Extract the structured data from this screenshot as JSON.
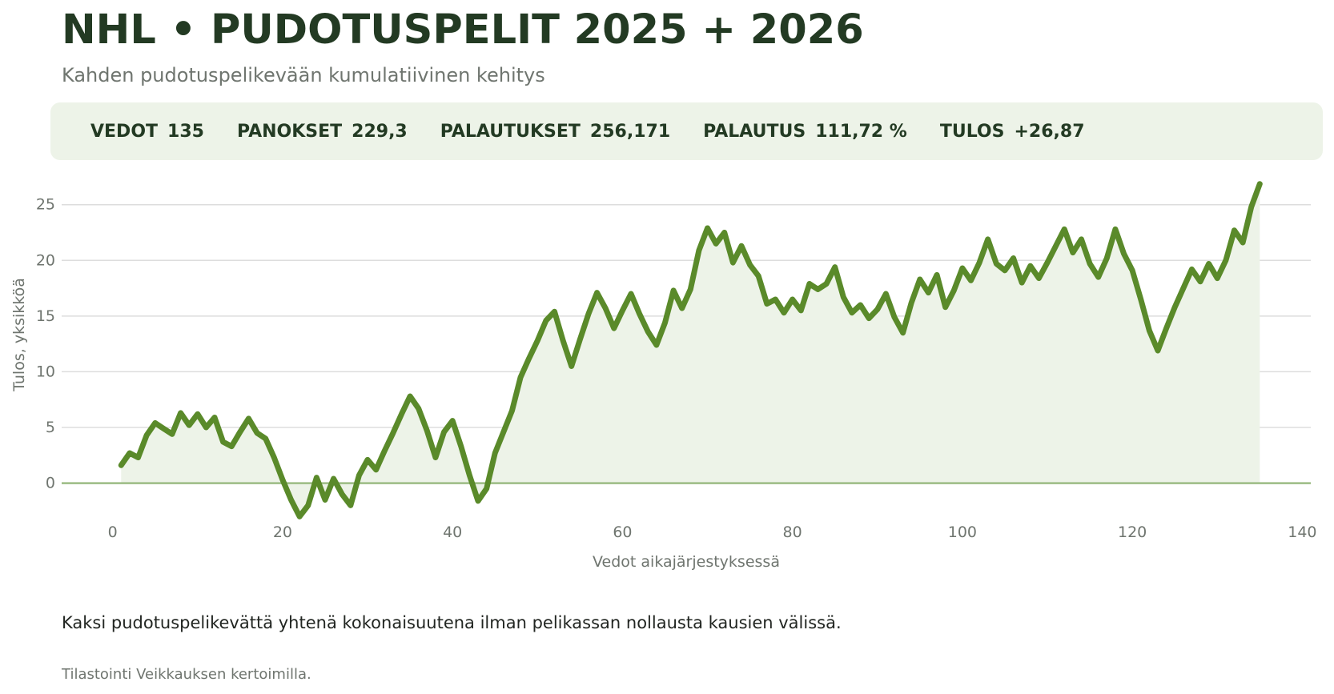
{
  "header": {
    "title": "NHL • PUDOTUSPELIT 2025 + 2026",
    "subtitle": "Kahden pudotuspelikevään kumulatiivinen kehitys"
  },
  "stats": [
    {
      "label": "VEDOT",
      "value": "135"
    },
    {
      "label": "PANOKSET",
      "value": "229,3"
    },
    {
      "label": "PALAUTUKSET",
      "value": "256,171"
    },
    {
      "label": "PALAUTUS",
      "value": "111,72 %"
    },
    {
      "label": "TULOS",
      "value": "+26,87"
    }
  ],
  "footer": {
    "note": "Kaksi pudotuspelikevättä yhtenä kokonaisuutena ilman pelikassan nollausta kausien välissä.",
    "source": "Tilastointi Veikkauksen kertoimilla."
  },
  "colors": {
    "line": "#5a8a2a",
    "fill": "#edf3e8",
    "zero_line": "#9cbc84",
    "grid": "#dddddd",
    "title": "#233a23",
    "muted": "#6f756f"
  },
  "chart_data": {
    "type": "line",
    "title": "NHL • PUDOTUSPELIT 2025 + 2026",
    "subtitle": "Kahden pudotuspelikevään kumulatiivinen kehitys",
    "xlabel": "Vedot aikajärjestyksessä",
    "ylabel": "Tulos, yksikköä",
    "xlim": [
      -6,
      141
    ],
    "ylim": [
      -4.2,
      28
    ],
    "xticks": [
      0,
      20,
      40,
      60,
      80,
      100,
      120,
      140
    ],
    "yticks": [
      0,
      5,
      10,
      15,
      20,
      25
    ],
    "grid": "horizontal",
    "area_fill": true,
    "series": [
      {
        "x": [
          1,
          2,
          3,
          4,
          5,
          6,
          7,
          8,
          9,
          10,
          11,
          12,
          13,
          14,
          15,
          16,
          17,
          18,
          19,
          20,
          21,
          22,
          23,
          24,
          25,
          26,
          27,
          28,
          29,
          30,
          31,
          32,
          33,
          34,
          35,
          36,
          37,
          38,
          39,
          40,
          41,
          42,
          43,
          44,
          45,
          46,
          47,
          48,
          49,
          50,
          51,
          52,
          53,
          54,
          55,
          56,
          57,
          58,
          59,
          60,
          61,
          62,
          63,
          64,
          65,
          66,
          67,
          68,
          69,
          70,
          71,
          72,
          73,
          74,
          75,
          76,
          77,
          78,
          79,
          80,
          81,
          82,
          83,
          84,
          85,
          86,
          87,
          88,
          89,
          90,
          91,
          92,
          93,
          94,
          95,
          96,
          97,
          98,
          99,
          100,
          101,
          102,
          103,
          104,
          105,
          106,
          107,
          108,
          109,
          110,
          111,
          112,
          113,
          114,
          115,
          116,
          117,
          118,
          119,
          120,
          121,
          122,
          123,
          124,
          125,
          126,
          127,
          128,
          129,
          130,
          131,
          132,
          133,
          134,
          135
        ],
        "y": [
          1.6,
          2.7,
          2.3,
          4.3,
          5.4,
          4.9,
          4.4,
          6.3,
          5.2,
          6.2,
          5.0,
          5.9,
          3.7,
          3.3,
          4.6,
          5.8,
          4.5,
          4.0,
          2.3,
          0.3,
          -1.5,
          -3.0,
          -2.0,
          0.5,
          -1.5,
          0.4,
          -1.0,
          -2.0,
          0.7,
          2.1,
          1.2,
          2.9,
          4.5,
          6.2,
          7.8,
          6.7,
          4.7,
          2.3,
          4.6,
          5.6,
          3.3,
          0.7,
          -1.6,
          -0.5,
          2.7,
          4.6,
          6.5,
          9.5,
          11.2,
          12.8,
          14.6,
          15.4,
          12.8,
          10.5,
          12.9,
          15.2,
          17.1,
          15.7,
          13.9,
          15.5,
          17.0,
          15.2,
          13.6,
          12.4,
          14.4,
          17.3,
          15.7,
          17.4,
          20.9,
          22.9,
          21.5,
          22.5,
          19.8,
          21.3,
          19.6,
          18.6,
          16.1,
          16.5,
          15.3,
          16.5,
          15.5,
          17.9,
          17.4,
          17.9,
          19.4,
          16.7,
          15.3,
          16.0,
          14.8,
          15.6,
          17.0,
          14.9,
          13.5,
          16.2,
          18.3,
          17.1,
          18.7,
          15.8,
          17.3,
          19.3,
          18.2,
          19.8,
          21.9,
          19.7,
          19.1,
          20.2,
          18.0,
          19.5,
          18.4,
          19.8,
          21.3,
          22.8,
          20.7,
          21.9,
          19.7,
          18.5,
          20.2,
          22.8,
          20.6,
          19.1,
          16.5,
          13.7,
          11.9,
          13.9,
          15.8,
          17.5,
          19.2,
          18.1,
          19.7,
          18.4,
          20.0,
          22.7,
          21.6,
          24.8,
          26.87
        ]
      }
    ]
  }
}
